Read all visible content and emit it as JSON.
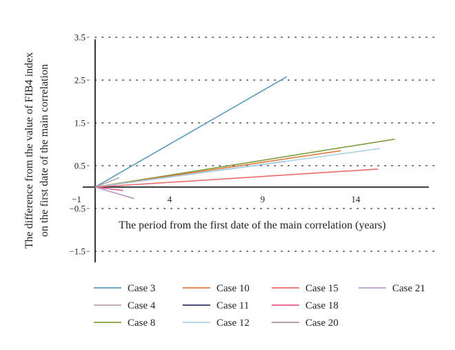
{
  "chart_data": {
    "type": "line",
    "title": "",
    "xlabel": "The period from the first date of the main correlation (years)",
    "ylabel_lines": [
      "The difference from the value of FIB4 index",
      "on the first date of the main correlation"
    ],
    "xlim": [
      -1,
      18.5
    ],
    "ylim": [
      -1.7,
      3.5
    ],
    "x_ticks": [
      -1,
      4,
      9,
      14
    ],
    "x_tick_labels": [
      "−1",
      "4",
      "9",
      "14"
    ],
    "y_ticks": [
      3.5,
      2.5,
      1.5,
      0.5,
      -0.5,
      -1.5
    ],
    "y_tick_labels": [
      "3.5",
      "2.5",
      "1.5",
      "0.5",
      "−0.5",
      "−1.5"
    ],
    "grid": "horizontal-dotted",
    "legend_position": "bottom",
    "series": [
      {
        "name": "Case 3",
        "color": "#5b9bb8",
        "x": [
          0,
          10.3
        ],
        "y": [
          0,
          2.58
        ]
      },
      {
        "name": "Case 4",
        "color": "#c2a4a8",
        "x": [
          0,
          1.3
        ],
        "y": [
          0,
          0.22
        ]
      },
      {
        "name": "Case 8",
        "color": "#7f9d3c",
        "x": [
          0,
          16.1
        ],
        "y": [
          0,
          1.12
        ]
      },
      {
        "name": "Case 10",
        "color": "#e07a3c",
        "x": [
          0,
          13.2
        ],
        "y": [
          0,
          0.85
        ]
      },
      {
        "name": "Case 11",
        "color": "#2e3a60",
        "x": [
          0,
          10.2
        ],
        "y": [
          0,
          0.6
        ]
      },
      {
        "name": "Case 12",
        "color": "#a9d3e8",
        "x": [
          0,
          15.3
        ],
        "y": [
          0,
          0.9
        ]
      },
      {
        "name": "Case 15",
        "color": "#ec6a6a",
        "x": [
          0,
          15.2
        ],
        "y": [
          0,
          0.42
        ]
      },
      {
        "name": "Case 18",
        "color": "#e85a8c",
        "x": [
          0,
          1.5
        ],
        "y": [
          0,
          -0.08
        ]
      },
      {
        "name": "Case 20",
        "color": "#a9959b",
        "x": [
          0,
          2.1
        ],
        "y": [
          0,
          -0.27
        ]
      },
      {
        "name": "Case 21",
        "color": "#b9a0cc",
        "x": [
          0,
          1.7
        ],
        "y": [
          0,
          -0.22
        ]
      }
    ],
    "legend_order": [
      "Case 3",
      "Case 10",
      "Case 15",
      "Case 21",
      "Case 4",
      "Case 11",
      "Case 18",
      "Case 8",
      "Case 12",
      "Case 20"
    ]
  }
}
